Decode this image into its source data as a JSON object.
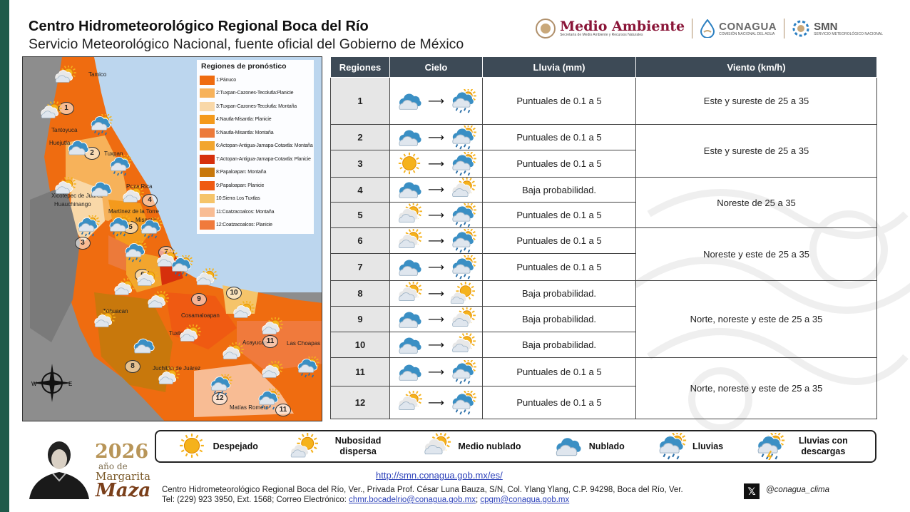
{
  "header": {
    "title": "Centro Hidrometeorológico Regional Boca del Río",
    "subtitle": "Servicio Meteorológico Nacional, fuente oficial del Gobierno de México"
  },
  "logos": {
    "medio_ambiente": "Medio Ambiente",
    "medio_ambiente_sub": "Secretaría de Medio Ambiente y Recursos Naturales",
    "conagua": "CONAGUA",
    "conagua_sub": "COMISIÓN NACIONAL DEL AGUA",
    "smn": "SMN",
    "smn_sub": "SERVICIO METEOROLÓGICO NACIONAL"
  },
  "map": {
    "legend_title": "Regiones de pronóstico",
    "legend": [
      {
        "label": "1:Pánuco",
        "color": "#ef6c10"
      },
      {
        "label": "2:Tuxpan-Cazones-Tecolutla:Planicie",
        "color": "#f7b25a"
      },
      {
        "label": "3:Tuxpan-Cazones-Tecolutla: Montaña",
        "color": "#f9d8a8"
      },
      {
        "label": "4:Nautla-Misantla: Planicie",
        "color": "#f49a1c"
      },
      {
        "label": "5:Nautla-Misantla: Montaña",
        "color": "#ec7a3a"
      },
      {
        "label": "6:Actopan-Antigua-Jamapa-Cotaxtla: Montaña",
        "color": "#f2a52e"
      },
      {
        "label": "7:Actopan-Antigua-Jamapa-Cotaxtla: Planicie",
        "color": "#d6300c"
      },
      {
        "label": "8:Papaloapan: Montaña",
        "color": "#c8780c"
      },
      {
        "label": "9:Papaloapan: Planicie",
        "color": "#ef5a12"
      },
      {
        "label": "10:Sierra Los Tuxtlas",
        "color": "#f5c46a"
      },
      {
        "label": "11:Coatzacoalcos: Montaña",
        "color": "#f8bc94"
      },
      {
        "label": "12:Coatzacoalcos: Planicie",
        "color": "#f07a3c"
      }
    ],
    "place_labels": [
      "Tamico",
      "Tantoyuca",
      "Huejutla",
      "Tuxpan",
      "Poza Rica",
      "Xicotepec de Juárez",
      "Huauchinango",
      "Martínez de la Torre",
      "Misantla",
      "Téhuacan",
      "Cosamaloapan",
      "Tuxtepec",
      "Juchitán de Juárez",
      "Acayucan",
      "Las Choapas",
      "Matías Romero"
    ],
    "region_numbers": [
      "1",
      "2",
      "3",
      "4",
      "5",
      "6",
      "7",
      "8",
      "9",
      "10",
      "11",
      "12",
      "11"
    ],
    "compass_labels": {
      "w": "W",
      "e": "E"
    }
  },
  "table": {
    "headers": [
      "Regiones",
      "Cielo",
      "Lluvia (mm)",
      "Viento (km/h)"
    ],
    "rows": [
      {
        "region": "1",
        "sky_from": "nublado",
        "sky_to": "lluvias",
        "rain": "Puntuales de 0.1 a 5"
      },
      {
        "region": "2",
        "sky_from": "nublado",
        "sky_to": "lluvias",
        "rain": "Puntuales de 0.1 a 5"
      },
      {
        "region": "3",
        "sky_from": "despejado",
        "sky_to": "lluvias",
        "rain": "Puntuales de 0.1 a 5"
      },
      {
        "region": "4",
        "sky_from": "nublado",
        "sky_to": "medio-nublado",
        "rain": "Baja probabilidad."
      },
      {
        "region": "5",
        "sky_from": "medio-nublado",
        "sky_to": "lluvias",
        "rain": "Puntuales de 0.1 a 5"
      },
      {
        "region": "6",
        "sky_from": "medio-nublado",
        "sky_to": "lluvias",
        "rain": "Puntuales de 0.1 a 5"
      },
      {
        "region": "7",
        "sky_from": "nublado",
        "sky_to": "lluvias",
        "rain": "Puntuales de 0.1 a 5"
      },
      {
        "region": "8",
        "sky_from": "medio-nublado",
        "sky_to": "nubosidad-dispersa",
        "rain": "Baja probabilidad."
      },
      {
        "region": "9",
        "sky_from": "nublado",
        "sky_to": "medio-nublado",
        "rain": "Baja probabilidad."
      },
      {
        "region": "10",
        "sky_from": "nublado",
        "sky_to": "medio-nublado",
        "rain": "Baja probabilidad."
      },
      {
        "region": "11",
        "sky_from": "nublado",
        "sky_to": "lluvias",
        "rain": "Puntuales de 0.1 a 5"
      },
      {
        "region": "12",
        "sky_from": "medio-nublado",
        "sky_to": "lluvias",
        "rain": "Puntuales de 0.1 a 5"
      }
    ],
    "wind": [
      {
        "text": "Este y sureste de 25 a 35",
        "rowspan": 1
      },
      {
        "text": "Este y sureste de 25 a 35",
        "rowspan": 2
      },
      {
        "text": "Noreste de 25 a 35",
        "rowspan": 2
      },
      {
        "text": "Noreste y este de 25 a 35",
        "rowspan": 2
      },
      {
        "text": "Norte, noreste y este de 25 a 35",
        "rowspan": 3
      },
      {
        "text": "Norte, noreste y este de 25 a 35",
        "rowspan": 2
      }
    ]
  },
  "weather_legend": [
    {
      "icon": "despejado",
      "label": "Despejado"
    },
    {
      "icon": "nubosidad-dispersa",
      "label": "Nubosidad dispersa"
    },
    {
      "icon": "medio-nublado",
      "label": "Medio nublado"
    },
    {
      "icon": "nublado",
      "label": "Nublado"
    },
    {
      "icon": "lluvias",
      "label": "Lluvias"
    },
    {
      "icon": "lluvias-descargas",
      "label": "Lluvias con descargas"
    }
  ],
  "commemorative": {
    "year": "2026",
    "line": "año de",
    "name1": "Margarita",
    "name2": "Maza"
  },
  "footer": {
    "url": "http://smn.conagua.gob.mx/es/",
    "address": "Centro Hidrometeorológico Regional Boca del Río, Ver., Privada Prof. César Luna Bauza, S/N, Col. Ylang Ylang, C.P. 94298, Boca del Río, Ver.",
    "phone": "Tel: (229) 923 3950, Ext. 1568; Correo Electrónico:",
    "email1": "chmr.bocadelrio@conagua.gob.mx",
    "email_sep": ";",
    "email2": "cpgm@conagua.gob.mx",
    "x_glyph": "𝕏",
    "handle": "@conagua_clima"
  },
  "colors": {
    "header_bg": "#3d4a56",
    "region_cell": "#e6e6e6",
    "sun": "#f5b21c",
    "cloud": "#3a8fc4",
    "link": "#2a3fb8",
    "strip": "#1f5a4a"
  }
}
